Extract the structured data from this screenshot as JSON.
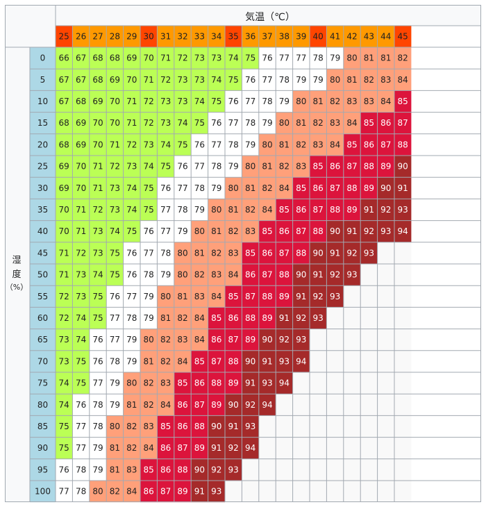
{
  "chart_data": {
    "type": "heatmap",
    "title": "気温（℃）",
    "ylabel": "湿度（%）",
    "x": [
      25,
      26,
      27,
      28,
      29,
      30,
      31,
      32,
      33,
      34,
      35,
      36,
      37,
      38,
      39,
      40,
      41,
      42,
      43,
      44,
      45
    ],
    "y": [
      0,
      5,
      10,
      15,
      20,
      25,
      30,
      35,
      40,
      45,
      50,
      55,
      60,
      65,
      70,
      75,
      80,
      85,
      90,
      95,
      100
    ],
    "values": [
      [
        66,
        67,
        68,
        68,
        69,
        70,
        71,
        72,
        73,
        73,
        74,
        75,
        76,
        77,
        77,
        78,
        79,
        80,
        81,
        81,
        82
      ],
      [
        67,
        67,
        68,
        69,
        70,
        71,
        72,
        73,
        73,
        74,
        75,
        76,
        77,
        78,
        79,
        79,
        80,
        81,
        82,
        83,
        84
      ],
      [
        67,
        68,
        69,
        70,
        71,
        72,
        73,
        73,
        74,
        75,
        76,
        77,
        78,
        79,
        80,
        81,
        82,
        83,
        83,
        84,
        85
      ],
      [
        68,
        69,
        70,
        70,
        71,
        72,
        73,
        74,
        75,
        76,
        77,
        78,
        79,
        80,
        81,
        82,
        83,
        84,
        85,
        86,
        87
      ],
      [
        68,
        69,
        70,
        71,
        72,
        73,
        74,
        75,
        76,
        77,
        78,
        79,
        80,
        81,
        82,
        83,
        84,
        85,
        86,
        87,
        88
      ],
      [
        69,
        70,
        71,
        72,
        73,
        74,
        75,
        76,
        77,
        78,
        79,
        80,
        81,
        82,
        83,
        85,
        86,
        87,
        88,
        89,
        90
      ],
      [
        69,
        70,
        71,
        73,
        74,
        75,
        76,
        77,
        78,
        79,
        80,
        81,
        82,
        84,
        85,
        86,
        87,
        88,
        89,
        90,
        91
      ],
      [
        70,
        71,
        72,
        73,
        74,
        75,
        77,
        78,
        79,
        80,
        81,
        82,
        84,
        85,
        86,
        87,
        88,
        89,
        91,
        92,
        93
      ],
      [
        70,
        71,
        73,
        74,
        75,
        76,
        77,
        79,
        80,
        81,
        82,
        83,
        85,
        86,
        87,
        88,
        90,
        91,
        92,
        93,
        94
      ],
      [
        71,
        72,
        73,
        75,
        76,
        77,
        78,
        80,
        81,
        82,
        83,
        85,
        86,
        87,
        88,
        90,
        91,
        92,
        93,
        null,
        null
      ],
      [
        71,
        73,
        74,
        75,
        76,
        78,
        79,
        80,
        82,
        83,
        84,
        86,
        87,
        88,
        90,
        91,
        92,
        93,
        null,
        null,
        null
      ],
      [
        72,
        73,
        75,
        76,
        77,
        79,
        80,
        81,
        83,
        84,
        85,
        87,
        88,
        89,
        91,
        92,
        93,
        null,
        null,
        null,
        null
      ],
      [
        72,
        74,
        75,
        77,
        78,
        79,
        81,
        82,
        84,
        85,
        86,
        88,
        89,
        91,
        92,
        93,
        null,
        null,
        null,
        null,
        null
      ],
      [
        73,
        74,
        76,
        77,
        79,
        80,
        82,
        83,
        84,
        86,
        87,
        89,
        90,
        92,
        93,
        null,
        null,
        null,
        null,
        null,
        null
      ],
      [
        73,
        75,
        76,
        78,
        79,
        81,
        82,
        84,
        85,
        87,
        88,
        90,
        91,
        93,
        94,
        null,
        null,
        null,
        null,
        null,
        null
      ],
      [
        74,
        75,
        77,
        79,
        80,
        82,
        83,
        85,
        86,
        88,
        89,
        91,
        93,
        94,
        null,
        null,
        null,
        null,
        null,
        null,
        null
      ],
      [
        74,
        76,
        78,
        79,
        81,
        82,
        84,
        86,
        87,
        89,
        90,
        92,
        94,
        null,
        null,
        null,
        null,
        null,
        null,
        null,
        null
      ],
      [
        75,
        77,
        78,
        80,
        82,
        83,
        85,
        86,
        88,
        90,
        91,
        93,
        null,
        null,
        null,
        null,
        null,
        null,
        null,
        null,
        null
      ],
      [
        75,
        77,
        79,
        81,
        82,
        84,
        86,
        87,
        89,
        91,
        92,
        94,
        null,
        null,
        null,
        null,
        null,
        null,
        null,
        null,
        null
      ],
      [
        76,
        78,
        79,
        81,
        83,
        85,
        86,
        88,
        90,
        92,
        93,
        null,
        null,
        null,
        null,
        null,
        null,
        null,
        null,
        null,
        null
      ],
      [
        77,
        78,
        80,
        82,
        84,
        86,
        87,
        89,
        91,
        93,
        null,
        null,
        null,
        null,
        null,
        null,
        null,
        null,
        null,
        null,
        null
      ]
    ],
    "color_bands": [
      {
        "max": 75,
        "color": "#bbff55"
      },
      {
        "max": 79,
        "color": "#ffffff"
      },
      {
        "max": 84,
        "color": "#ffa07a"
      },
      {
        "max": 89,
        "color": "#dc143c"
      },
      {
        "max": 94,
        "color": "#a52a2a"
      }
    ],
    "x_header_colors": {
      "default": "#ff9900",
      "highlight": "#ff4500",
      "highlight_values": [
        25,
        30,
        35,
        40,
        45
      ]
    },
    "y_header_color": "#add8e6",
    "empty_color": "#f9f9f9",
    "grid_color": "#a2a9b1",
    "header_background": "#f8f9fa"
  }
}
